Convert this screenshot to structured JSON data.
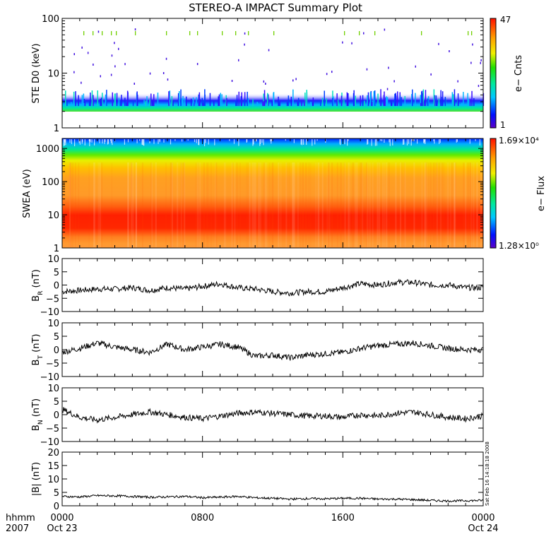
{
  "chart_data": [
    {
      "type": "heatmap",
      "title": "STEREO-A IMPACT Summary Plot",
      "ylabel": "STE D0 (keV)",
      "y_scale": "log",
      "ylim": [
        1,
        100
      ],
      "yticks": [
        "1",
        "10",
        "100"
      ],
      "colorbar": {
        "label": "e− Cnts",
        "min_label": "1",
        "max_label": "47",
        "min": 1,
        "max": 47
      }
    },
    {
      "type": "heatmap",
      "ylabel": "SWEA (eV)",
      "y_scale": "log",
      "ylim": [
        1,
        2000
      ],
      "yticks": [
        "1",
        "10",
        "100",
        "1000"
      ],
      "colorbar": {
        "label": "e− Flux",
        "min_label": "1.28×10⁰",
        "max_label": "1.69×10⁴",
        "min": 1.28,
        "max": 16900
      }
    },
    {
      "type": "line",
      "ylabel": "B_R (nT)",
      "ylim": [
        -10,
        10
      ],
      "yticks": [
        "10",
        "5",
        "0",
        "−5",
        "−10"
      ],
      "x": [
        0,
        1,
        2,
        3,
        4,
        5,
        6,
        7,
        8,
        9,
        10,
        11,
        12,
        13,
        14,
        15,
        16,
        17,
        18,
        19,
        20,
        21,
        22,
        23,
        24
      ],
      "values": [
        -2.5,
        -2,
        -1.5,
        -1.5,
        -1,
        -2,
        -1,
        -1.5,
        -0.5,
        0.5,
        -1,
        -1.5,
        -2.5,
        -3,
        -2.5,
        -2.5,
        -1,
        0.5,
        0,
        1,
        1,
        0,
        0,
        -1,
        -1
      ]
    },
    {
      "type": "line",
      "ylabel": "B_T (nT)",
      "ylim": [
        -10,
        10
      ],
      "yticks": [
        "10",
        "5",
        "0",
        "−5",
        "−10"
      ],
      "x": [
        0,
        1,
        2,
        3,
        4,
        5,
        6,
        7,
        8,
        9,
        10,
        11,
        12,
        13,
        14,
        15,
        16,
        17,
        18,
        19,
        20,
        21,
        22,
        23,
        24
      ],
      "values": [
        -1,
        0.5,
        2.5,
        1,
        0,
        -1,
        2,
        0,
        1,
        2,
        1,
        -2.5,
        -2,
        -3,
        -2,
        -1.5,
        -1,
        0.5,
        1.5,
        2,
        2.5,
        1.5,
        0.5,
        0,
        0
      ]
    },
    {
      "type": "line",
      "ylabel": "B_N (nT)",
      "ylim": [
        -10,
        10
      ],
      "yticks": [
        "10",
        "5",
        "0",
        "−5",
        "−10"
      ],
      "x": [
        0,
        1,
        2,
        3,
        4,
        5,
        6,
        7,
        8,
        9,
        10,
        11,
        12,
        13,
        14,
        15,
        16,
        17,
        18,
        19,
        20,
        21,
        22,
        23,
        24
      ],
      "values": [
        2,
        -1,
        -2,
        -1,
        0,
        1,
        0,
        -1,
        -1.5,
        -0.5,
        0.5,
        1,
        0.5,
        0,
        -0.5,
        -0.5,
        -1,
        0,
        -0.5,
        0.5,
        1,
        0,
        -1,
        -1.5,
        -0.5
      ]
    },
    {
      "type": "line",
      "ylabel": "|B| (nT)",
      "ylim": [
        0,
        20
      ],
      "yticks": [
        "20",
        "15",
        "10",
        "5",
        "0"
      ],
      "x": [
        0,
        1,
        2,
        3,
        4,
        5,
        6,
        7,
        8,
        9,
        10,
        11,
        12,
        13,
        14,
        15,
        16,
        17,
        18,
        19,
        20,
        21,
        22,
        23,
        24
      ],
      "values": [
        3.5,
        3.3,
        3.8,
        3.7,
        3.5,
        3.2,
        3.3,
        3.5,
        3.0,
        3.2,
        3.5,
        3.0,
        2.8,
        2.5,
        2.7,
        2.6,
        2.8,
        2.8,
        2.5,
        2.5,
        2.3,
        2.0,
        1.8,
        1.9,
        2.0
      ]
    }
  ],
  "time_axis": {
    "label_line1": "hhmm",
    "label_line2": "2007",
    "ticks": [
      {
        "hour": 0,
        "label": "0000",
        "date": "Oct 23"
      },
      {
        "hour": 8,
        "label": "0800",
        "date": ""
      },
      {
        "hour": 16,
        "label": "1600",
        "date": ""
      },
      {
        "hour": 24,
        "label": "0000",
        "date": "Oct 24"
      }
    ]
  },
  "side_stamp": "Sat Feb 16 14:18:18 2008",
  "colors": {
    "trace": "#000000",
    "frame": "#000000",
    "background": "#ffffff"
  }
}
